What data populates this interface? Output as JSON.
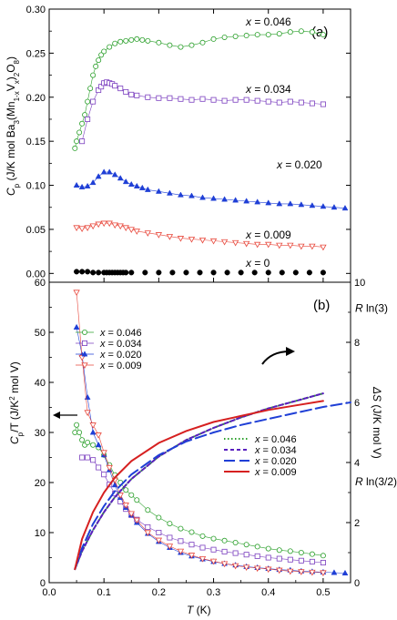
{
  "chart_data": [
    {
      "type": "scatter",
      "panel_label": "(a)",
      "ylabel_parts": [
        "C",
        "p",
        " (J/K mol Ba",
        "3",
        "(Mn",
        "1-x",
        "V",
        "x",
        ")",
        "2",
        "O",
        "8",
        ")"
      ],
      "xlim": [
        0.0,
        0.55
      ],
      "ylim": [
        -0.01,
        0.3
      ],
      "yticks": [
        "0.00",
        "0.05",
        "0.10",
        "0.15",
        "0.20",
        "0.25",
        "0.30"
      ],
      "series": [
        {
          "name": "x = 0.046",
          "label_x": "x",
          "label_val": "= 0.046",
          "color": "#2ca02c",
          "marker": "circle-open",
          "x": [
            0.047,
            0.05,
            0.055,
            0.06,
            0.065,
            0.07,
            0.075,
            0.08,
            0.085,
            0.09,
            0.095,
            0.1,
            0.11,
            0.12,
            0.13,
            0.14,
            0.15,
            0.16,
            0.17,
            0.18,
            0.2,
            0.22,
            0.24,
            0.26,
            0.28,
            0.3,
            0.32,
            0.34,
            0.36,
            0.38,
            0.4,
            0.42,
            0.44,
            0.46,
            0.48,
            0.5
          ],
          "y": [
            0.142,
            0.15,
            0.16,
            0.17,
            0.18,
            0.195,
            0.21,
            0.225,
            0.235,
            0.242,
            0.248,
            0.252,
            0.257,
            0.261,
            0.263,
            0.264,
            0.265,
            0.266,
            0.265,
            0.264,
            0.262,
            0.259,
            0.257,
            0.259,
            0.262,
            0.266,
            0.268,
            0.269,
            0.27,
            0.271,
            0.271,
            0.272,
            0.274,
            0.275,
            0.274,
            0.271
          ]
        },
        {
          "name": "x = 0.034",
          "label_x": "x",
          "label_val": "= 0.034",
          "color": "#7b3fbf",
          "marker": "square-open",
          "x": [
            0.06,
            0.07,
            0.08,
            0.09,
            0.095,
            0.1,
            0.105,
            0.11,
            0.115,
            0.12,
            0.13,
            0.14,
            0.15,
            0.16,
            0.18,
            0.2,
            0.22,
            0.24,
            0.26,
            0.28,
            0.3,
            0.32,
            0.34,
            0.36,
            0.38,
            0.4,
            0.42,
            0.44,
            0.46,
            0.48,
            0.5
          ],
          "y": [
            0.15,
            0.175,
            0.195,
            0.208,
            0.212,
            0.216,
            0.217,
            0.216,
            0.215,
            0.213,
            0.21,
            0.206,
            0.203,
            0.202,
            0.2,
            0.199,
            0.199,
            0.198,
            0.197,
            0.198,
            0.197,
            0.196,
            0.197,
            0.197,
            0.196,
            0.195,
            0.194,
            0.195,
            0.194,
            0.193,
            0.192
          ]
        },
        {
          "name": "x = 0.020",
          "label_x": "x",
          "label_val": "= 0.020",
          "color": "#1f3fd6",
          "marker": "triangle-filled",
          "x": [
            0.05,
            0.06,
            0.07,
            0.08,
            0.09,
            0.1,
            0.11,
            0.12,
            0.13,
            0.14,
            0.15,
            0.16,
            0.17,
            0.18,
            0.2,
            0.22,
            0.24,
            0.26,
            0.28,
            0.3,
            0.32,
            0.34,
            0.36,
            0.38,
            0.4,
            0.42,
            0.44,
            0.46,
            0.48,
            0.5,
            0.52,
            0.54
          ],
          "y": [
            0.1,
            0.098,
            0.099,
            0.103,
            0.11,
            0.115,
            0.115,
            0.112,
            0.108,
            0.104,
            0.101,
            0.099,
            0.097,
            0.095,
            0.093,
            0.091,
            0.089,
            0.088,
            0.086,
            0.085,
            0.084,
            0.083,
            0.082,
            0.081,
            0.08,
            0.079,
            0.079,
            0.078,
            0.077,
            0.076,
            0.075,
            0.074
          ]
        },
        {
          "name": "x = 0.009",
          "label_x": "x",
          "label_val": "= 0.009",
          "color": "#e8483c",
          "marker": "triangle-down-open",
          "x": [
            0.05,
            0.06,
            0.07,
            0.08,
            0.09,
            0.1,
            0.11,
            0.12,
            0.13,
            0.14,
            0.15,
            0.16,
            0.18,
            0.2,
            0.22,
            0.24,
            0.26,
            0.28,
            0.3,
            0.32,
            0.34,
            0.36,
            0.38,
            0.4,
            0.42,
            0.44,
            0.46,
            0.48,
            0.5
          ],
          "y": [
            0.052,
            0.051,
            0.052,
            0.054,
            0.056,
            0.057,
            0.057,
            0.055,
            0.054,
            0.052,
            0.05,
            0.048,
            0.046,
            0.044,
            0.042,
            0.04,
            0.039,
            0.038,
            0.037,
            0.036,
            0.035,
            0.034,
            0.033,
            0.033,
            0.032,
            0.032,
            0.031,
            0.031,
            0.03
          ]
        },
        {
          "name": "x = 0",
          "label_x": "x",
          "label_val": "= 0",
          "color": "#000000",
          "marker": "circle-filled",
          "x": [
            0.05,
            0.06,
            0.07,
            0.08,
            0.09,
            0.1,
            0.105,
            0.11,
            0.115,
            0.12,
            0.125,
            0.13,
            0.135,
            0.14,
            0.15,
            0.175,
            0.2,
            0.225,
            0.25,
            0.275,
            0.3,
            0.325,
            0.35,
            0.375,
            0.4,
            0.425,
            0.45,
            0.475,
            0.5
          ],
          "y": [
            0.002,
            0.002,
            0.002,
            0.001,
            0.001,
            0.001,
            0.001,
            0.001,
            0.001,
            0.001,
            0.001,
            0.001,
            0.001,
            0.001,
            0.001,
            0.001,
            0.001,
            0.001,
            0.001,
            0.001,
            0.001,
            0.001,
            0.001,
            0.001,
            0.001,
            0.001,
            0.001,
            0.001,
            0.001
          ]
        }
      ]
    },
    {
      "type": "scatter",
      "panel_label": "(b)",
      "xlabel": "T",
      "xlabel_unit": " (K)",
      "xlim": [
        0.0,
        0.55
      ],
      "xticks": [
        "0.0",
        "0.1",
        "0.2",
        "0.3",
        "0.4",
        "0.5"
      ],
      "ylim_left": [
        0,
        60
      ],
      "yticks_left": [
        "0",
        "10",
        "20",
        "30",
        "40",
        "50",
        "60"
      ],
      "ylabel_left_parts": [
        "C",
        "p",
        "/T (J/K",
        "2",
        " mol V)"
      ],
      "ylim_right": [
        0,
        10
      ],
      "yticks_right": [
        "0",
        "2",
        "4",
        "6",
        "8",
        "10"
      ],
      "ylabel_right_parts": [
        "ΔS",
        " (J/K mol V)"
      ],
      "right_markers": [
        {
          "text": "R ln(3)",
          "value": 9.13
        },
        {
          "text": "R ln(3/2)",
          "value": 3.37
        }
      ],
      "series_cp_over_t": [
        {
          "name": "x = 0.046",
          "label_x": "x",
          "label_val": "= 0.046",
          "color": "#2ca02c",
          "marker": "circle-open",
          "x": [
            0.047,
            0.05,
            0.055,
            0.06,
            0.065,
            0.07,
            0.08,
            0.09,
            0.1,
            0.11,
            0.12,
            0.13,
            0.14,
            0.15,
            0.16,
            0.18,
            0.2,
            0.22,
            0.24,
            0.26,
            0.28,
            0.3,
            0.32,
            0.34,
            0.36,
            0.38,
            0.4,
            0.42,
            0.44,
            0.46,
            0.48,
            0.5
          ],
          "y": [
            30.0,
            31.5,
            30.0,
            28.5,
            27.5,
            28.0,
            27.5,
            27.0,
            25.5,
            23.5,
            21.5,
            20.0,
            18.5,
            17.5,
            16.5,
            14.5,
            13.0,
            11.8,
            10.8,
            10.1,
            9.3,
            8.8,
            8.4,
            8.0,
            7.6,
            7.2,
            6.8,
            6.5,
            6.3,
            6.0,
            5.7,
            5.4
          ]
        },
        {
          "name": "x = 0.034",
          "label_x": "x",
          "label_val": "= 0.034",
          "color": "#7b3fbf",
          "marker": "square-open",
          "x": [
            0.06,
            0.07,
            0.08,
            0.09,
            0.1,
            0.11,
            0.12,
            0.13,
            0.14,
            0.15,
            0.16,
            0.18,
            0.2,
            0.22,
            0.24,
            0.26,
            0.28,
            0.3,
            0.32,
            0.34,
            0.36,
            0.38,
            0.4,
            0.42,
            0.44,
            0.46,
            0.48,
            0.5
          ],
          "y": [
            25.0,
            25.0,
            24.5,
            23.0,
            21.6,
            19.6,
            17.8,
            16.2,
            14.7,
            13.5,
            12.6,
            11.1,
            10.0,
            9.0,
            8.3,
            7.6,
            7.0,
            6.6,
            6.2,
            5.9,
            5.6,
            5.3,
            5.0,
            4.8,
            4.6,
            4.4,
            4.2,
            4.0
          ]
        },
        {
          "name": "x = 0.020",
          "label_x": "x",
          "label_val": "= 0.020",
          "color": "#1f3fd6",
          "marker": "triangle-filled",
          "x": [
            0.05,
            0.06,
            0.07,
            0.08,
            0.09,
            0.1,
            0.11,
            0.12,
            0.13,
            0.14,
            0.15,
            0.16,
            0.18,
            0.2,
            0.22,
            0.24,
            0.26,
            0.28,
            0.3,
            0.32,
            0.34,
            0.36,
            0.38,
            0.4,
            0.42,
            0.44,
            0.46,
            0.48,
            0.5,
            0.52,
            0.54
          ],
          "y": [
            51.0,
            45.5,
            37.0,
            30.0,
            27.5,
            25.5,
            22.5,
            19.5,
            17.0,
            15.0,
            13.5,
            12.0,
            9.8,
            8.2,
            7.0,
            6.0,
            5.3,
            4.7,
            4.2,
            3.8,
            3.5,
            3.2,
            3.0,
            2.8,
            2.6,
            2.5,
            2.3,
            2.2,
            2.1,
            2.0,
            1.9
          ]
        },
        {
          "name": "x = 0.009",
          "label_x": "x",
          "label_val": "= 0.009",
          "color": "#e8483c",
          "marker": "triangle-down-open",
          "x": [
            0.05,
            0.06,
            0.07,
            0.08,
            0.09,
            0.1,
            0.11,
            0.12,
            0.13,
            0.14,
            0.15,
            0.16,
            0.18,
            0.2,
            0.22,
            0.24,
            0.26,
            0.28,
            0.3,
            0.32,
            0.34,
            0.36,
            0.38,
            0.4,
            0.42,
            0.44,
            0.46,
            0.48,
            0.5
          ],
          "y": [
            58.0,
            45.0,
            34.0,
            31.5,
            29.5,
            26.0,
            23.0,
            20.5,
            17.5,
            15.5,
            13.8,
            12.5,
            10.0,
            8.5,
            7.3,
            6.3,
            5.5,
            4.8,
            4.3,
            3.8,
            3.4,
            3.1,
            2.9,
            2.7,
            2.5,
            2.3,
            2.2,
            2.1,
            2.0
          ]
        }
      ],
      "series_entropy": [
        {
          "name": "x = 0.046",
          "label_x": "x",
          "label_val": "= 0.046",
          "color": "#2ca02c",
          "dash": "dotted",
          "x": [
            0.047,
            0.06,
            0.08,
            0.1,
            0.12,
            0.15,
            0.2,
            0.25,
            0.3,
            0.35,
            0.4,
            0.45,
            0.5
          ],
          "y": [
            0.45,
            1.05,
            1.75,
            2.35,
            2.85,
            3.45,
            4.2,
            4.75,
            5.15,
            5.5,
            5.8,
            6.05,
            6.3
          ]
        },
        {
          "name": "x = 0.034",
          "label_x": "x",
          "label_val": "= 0.034",
          "color": "#5a1fbf",
          "dash": "short-dash",
          "x": [
            0.047,
            0.06,
            0.08,
            0.1,
            0.12,
            0.15,
            0.2,
            0.25,
            0.3,
            0.35,
            0.4,
            0.45,
            0.5
          ],
          "y": [
            0.45,
            1.05,
            1.75,
            2.35,
            2.85,
            3.45,
            4.2,
            4.75,
            5.15,
            5.5,
            5.8,
            6.05,
            6.3
          ]
        },
        {
          "name": "x = 0.020",
          "label_x": "x",
          "label_val": "= 0.020",
          "color": "#1f3fd6",
          "dash": "long-dash",
          "x": [
            0.047,
            0.06,
            0.08,
            0.1,
            0.12,
            0.15,
            0.2,
            0.25,
            0.3,
            0.35,
            0.4,
            0.45,
            0.5,
            0.55
          ],
          "y": [
            0.45,
            1.15,
            1.95,
            2.55,
            3.05,
            3.6,
            4.25,
            4.7,
            5.0,
            5.25,
            5.45,
            5.65,
            5.85,
            6.0
          ]
        },
        {
          "name": "x = 0.009",
          "label_x": "x",
          "label_val": "= 0.009",
          "color": "#d62020",
          "dash": "solid",
          "x": [
            0.047,
            0.06,
            0.08,
            0.1,
            0.12,
            0.15,
            0.2,
            0.25,
            0.3,
            0.35,
            0.4,
            0.45,
            0.5
          ],
          "y": [
            0.45,
            1.45,
            2.35,
            3.0,
            3.5,
            4.05,
            4.65,
            5.05,
            5.35,
            5.55,
            5.75,
            5.9,
            6.05
          ]
        }
      ]
    }
  ]
}
